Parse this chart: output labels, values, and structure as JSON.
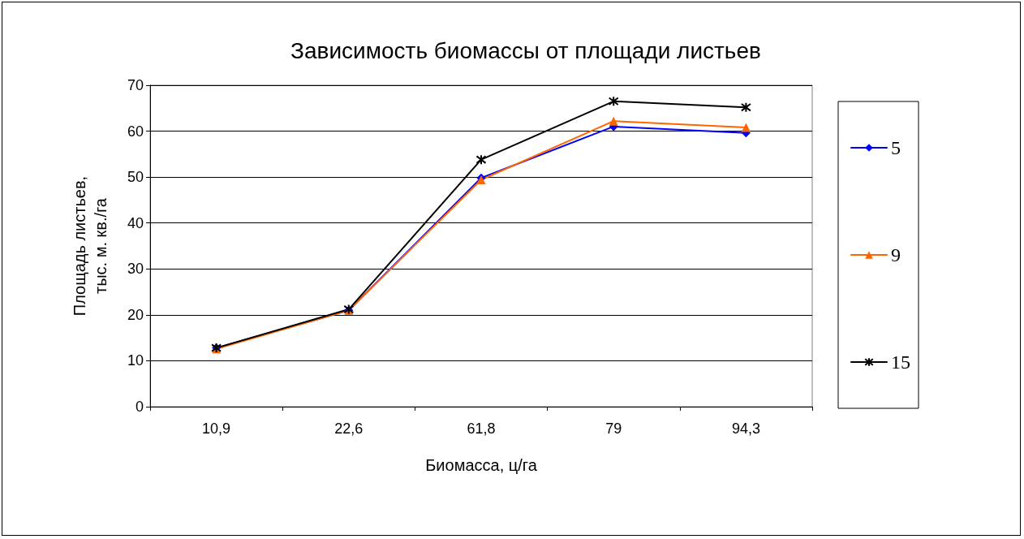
{
  "chart_data": {
    "type": "line",
    "title": "Зависимость биомассы от площади листьев",
    "xlabel": "Биомасса, ц/га",
    "ylabel": "Площадь листьев,\nтыс. м. кв./га",
    "categories": [
      "10,9",
      "22,6",
      "61,8",
      "79",
      "94,3"
    ],
    "series": [
      {
        "name": "5",
        "color": "#0000ff",
        "marker": "diamond",
        "values": [
          12.8,
          21,
          49.8,
          61,
          59.6
        ]
      },
      {
        "name": "9",
        "color": "#ff6600",
        "marker": "triangle",
        "values": [
          12.6,
          21,
          49.4,
          62.2,
          60.8
        ]
      },
      {
        "name": "15",
        "color": "#000000",
        "marker": "cross",
        "values": [
          12.8,
          21.2,
          53.8,
          66.5,
          65.2
        ]
      }
    ],
    "ylim": [
      0,
      70
    ],
    "yticks": [
      0,
      10,
      20,
      30,
      40,
      50,
      60,
      70
    ],
    "grid": "y",
    "legend": "right",
    "line_style": "solid"
  }
}
